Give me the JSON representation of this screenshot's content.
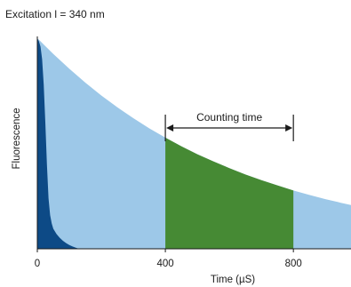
{
  "chart_data": {
    "type": "area",
    "annotation_top": "Excitation l = 340 nm",
    "xlabel": "Time (µS)",
    "ylabel": "Fluorescence",
    "xlim": [
      0,
      980
    ],
    "ylim": [
      0,
      1
    ],
    "x_ticks": [
      0,
      400,
      800
    ],
    "x_tick_labels": [
      "0",
      "400",
      "800"
    ],
    "grid": false,
    "legend": "none",
    "series": [
      {
        "role": "long-lived",
        "color": "#9dc8e8",
        "x": [
          0,
          10,
          20,
          50,
          100,
          150,
          200,
          250,
          300,
          350,
          400,
          450,
          500,
          550,
          600,
          650,
          700,
          750,
          800,
          850,
          900,
          950,
          980
        ],
        "y": [
          1.0,
          0.985,
          0.97,
          0.925,
          0.855,
          0.789,
          0.728,
          0.672,
          0.62,
          0.572,
          0.528,
          0.487,
          0.449,
          0.415,
          0.383,
          0.353,
          0.326,
          0.301,
          0.277,
          0.256,
          0.236,
          0.218,
          0.208
        ]
      },
      {
        "role": "short-lived",
        "color": "#0d4a86",
        "x": [
          0,
          5,
          10,
          15,
          20,
          25,
          30,
          35,
          40,
          45,
          50,
          60,
          70,
          80,
          90,
          100,
          110,
          120,
          130
        ],
        "y": [
          1.0,
          0.985,
          0.96,
          0.9,
          0.78,
          0.6,
          0.4,
          0.24,
          0.16,
          0.12,
          0.095,
          0.07,
          0.052,
          0.038,
          0.027,
          0.018,
          0.011,
          0.005,
          0.0
        ]
      }
    ],
    "highlight_window": {
      "x_start": 400,
      "x_end": 800,
      "color": "#468a34",
      "label": "Counting time"
    }
  }
}
